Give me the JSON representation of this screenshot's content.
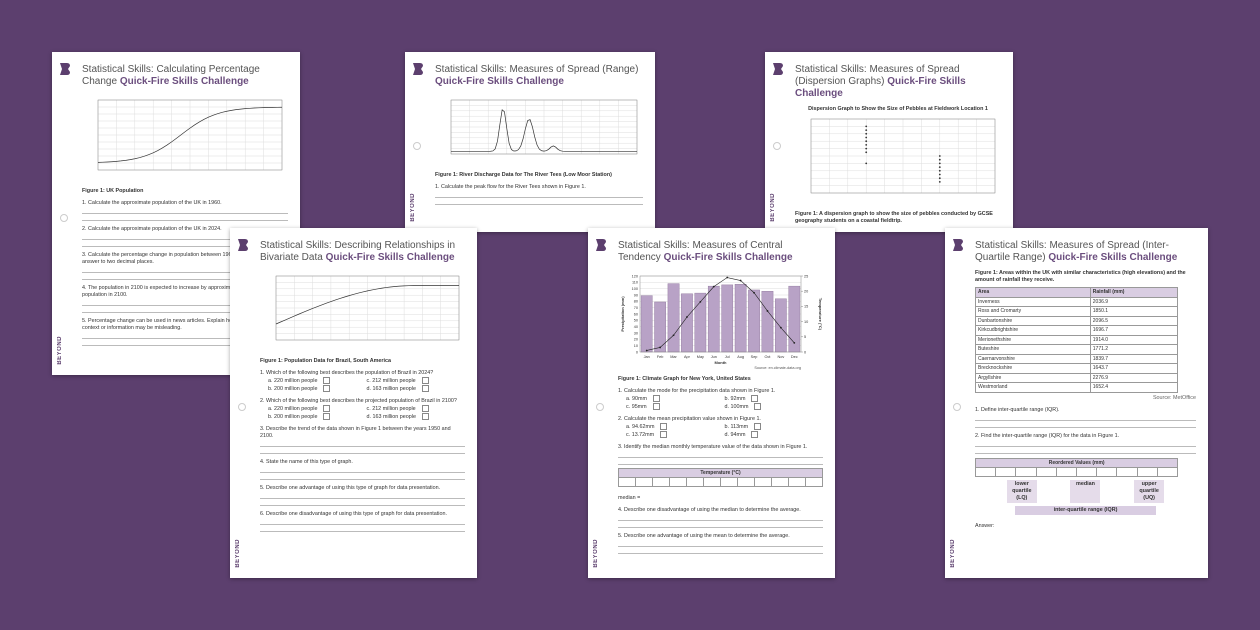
{
  "brand": "BEYOND",
  "sheets": [
    {
      "title": "Statistical Skills: Calculating Percentage Change",
      "subtitle": "Quick-Fire Skills Challenge",
      "caption": "Figure 1: UK Population",
      "questions": [
        {
          "text": "1. Calculate the approximate population of the UK in 1960."
        },
        {
          "text": "2. Calculate the approximate population of the UK in 2024."
        },
        {
          "text": "3. Calculate the percentage change in population between 1960 and 2024. Give the answer to two decimal places."
        },
        {
          "text": "4. The population in 2100 is expected to increase by approximately... Calculate the population in 2100."
        },
        {
          "text": "5. Percentage change can be used in news articles. Explain how... without additional context or information may be misleading."
        }
      ]
    },
    {
      "title": "Statistical Skills: Measures of Spread (Range)",
      "subtitle": "Quick-Fire Skills Challenge",
      "caption": "Figure 1: River Discharge Data for The River Tees (Low Moor Station)",
      "questions": [
        {
          "text": "1. Calculate the peak flow for the River Tees shown in Figure 1."
        }
      ]
    },
    {
      "title": "Statistical Skills: Measures of Spread (Dispersion Graphs)",
      "subtitle": "Quick-Fire Skills Challenge",
      "figure_title": "Dispersion Graph to Show the Size of Pebbles at Fieldwork Location 1",
      "caption": "Figure 1: A dispersion graph to show the size of pebbles conducted by GCSE geography students on a coastal fieldtrip.",
      "questions": []
    },
    {
      "title": "Statistical Skills: Describing Relationships in Bivariate Data",
      "subtitle": "Quick-Fire Skills Challenge",
      "caption": "Figure 1: Population Data for Brazil, South America",
      "questions": [
        {
          "text": "1. Which of the following best describes the population of Brazil in 2024?",
          "options": [
            "a. 220 million people",
            "c. 212 million people",
            "b. 200 million people",
            "d. 163 million people"
          ]
        },
        {
          "text": "2. Which of the following best describes the projected population of Brazil in 2100?",
          "options": [
            "a. 220 million people",
            "c. 212 million people",
            "b. 200 million people",
            "d. 163 million people"
          ]
        },
        {
          "text": "3. Describe the trend of the data shown in Figure 1 between the years 1950 and 2100."
        },
        {
          "text": "4. State the name of this type of graph."
        },
        {
          "text": "5. Describe one advantage of using this type of graph for data presentation."
        },
        {
          "text": "6. Describe one disadvantage of using this type of graph for data presentation."
        }
      ]
    },
    {
      "title": "Statistical Skills: Measures of Central Tendency",
      "subtitle": "Quick-Fire Skills Challenge",
      "caption": "Figure 1: Climate Graph for New York, United States",
      "questions": [
        {
          "text": "1. Calculate the mode for the precipitation data shown in Figure 1.",
          "options": [
            "a. 90mm",
            "b. 92mm",
            "c. 95mm",
            "d. 100mm"
          ]
        },
        {
          "text": "2. Calculate the mean precipitation value shown in Figure 1.",
          "options": [
            "a. 94.62mm",
            "b. 113mm",
            "c. 13.72mm",
            "d. 94mm"
          ]
        },
        {
          "text": "3. Identify the median monthly temperature value of the data shown in Figure 1."
        },
        {
          "text": "4. Describe one disadvantage of using the median to determine the average."
        },
        {
          "text": "5. Describe one advantage of using the mean to determine the average."
        }
      ],
      "temp_header": "Temperature (°C)",
      "median_label": "median ="
    },
    {
      "title": "Statistical Skills: Measures of Spread (Inter-Quartile Range)",
      "subtitle": "Quick-Fire Skills Challenge",
      "caption": "Figure 1: Areas within the UK with similar characteristics (high elevations) and the amount of rainfall they receive.",
      "table": {
        "columns": [
          "Area",
          "Rainfall (mm)"
        ],
        "rows": [
          [
            "Inverness",
            "2036.9"
          ],
          [
            "Ross and Cromarty",
            "1850.1"
          ],
          [
            "Dunbartonshire",
            "2096.5"
          ],
          [
            "Kirkcudbrightshire",
            "1696.7"
          ],
          [
            "Merionethshire",
            "1914.0"
          ],
          [
            "Buteshire",
            "1771.2"
          ],
          [
            "Caernarvonshire",
            "1839.7"
          ],
          [
            "Brecknockshire",
            "1643.7"
          ],
          [
            "Argyllshire",
            "2276.9"
          ],
          [
            "Westmorland",
            "1652.4"
          ]
        ],
        "source": "Source: MetOffice"
      },
      "questions": [
        {
          "text": "1. Define inter-quartile range (IQR)."
        },
        {
          "text": "2. Find the inter-quartile range (IQR) for the data in Figure 1."
        }
      ],
      "iqr": {
        "header": "Reordered Values (mm)",
        "lq": "lower quartile (LQ)",
        "median": "median",
        "uq": "upper quartile (UQ)",
        "iqr": "inter-quartile range (IQR)",
        "answer": "Answer:"
      }
    }
  ],
  "chart_data": {
    "type": "bar_line",
    "categories": [
      "Jan",
      "Feb",
      "Mar",
      "Apr",
      "May",
      "Jun",
      "Jul",
      "Aug",
      "Sep",
      "Oct",
      "Nov",
      "Dec"
    ],
    "series": [
      {
        "name": "Precipitation (mm)",
        "color": "#b8a2c6",
        "values": [
          89,
          79,
          108,
          92,
          93,
          104,
          106,
          107,
          98,
          96,
          84,
          104
        ]
      },
      {
        "name": "Temperature (°C)",
        "color": "#222222",
        "axis": "y2",
        "values": [
          0.5,
          1.5,
          5.5,
          11.5,
          16.5,
          21.5,
          24.5,
          23.5,
          19.5,
          13.5,
          8,
          3
        ]
      }
    ],
    "xlabel": "Month",
    "ylabel": "Precipitation (mm)",
    "y2label": "Temperature (°C)",
    "ylim": [
      0,
      120
    ],
    "yticks": [
      0,
      10,
      20,
      30,
      40,
      50,
      60,
      70,
      80,
      90,
      100,
      110,
      120
    ],
    "y2lim": [
      0,
      25
    ],
    "y2ticks": [
      0,
      5,
      10,
      15,
      20,
      25
    ],
    "source": "Source: en.climate-data.org"
  }
}
